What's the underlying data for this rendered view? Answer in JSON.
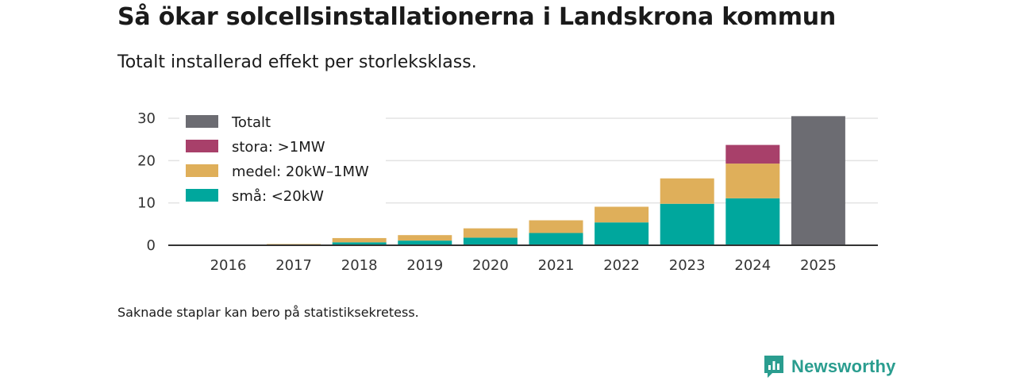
{
  "title": "Så ökar solcellsinstallationerna i Landskrona kommun",
  "subtitle": "Totalt installerad effekt per storleksklass.",
  "note": "Saknade staplar kan bero på statistiksekretess.",
  "brand": "Newsworthy",
  "colors": {
    "small": "#00a79d",
    "medium": "#dfaf5a",
    "large": "#a8406a",
    "total": "#6c6c72",
    "brand": "#2a9d8f",
    "grid": "#e3e3e3",
    "axis": "#333333"
  },
  "chart_data": {
    "type": "bar",
    "stacked": true,
    "title": "Så ökar solcellsinstallationerna i Landskrona kommun",
    "subtitle": "Totalt installerad effekt per storleksklass.",
    "xlabel": "",
    "ylabel": "",
    "ylim": [
      0,
      30
    ],
    "yticks": [
      0,
      10,
      20,
      30
    ],
    "grid": true,
    "legend_position": "top-left",
    "categories": [
      "2016",
      "2017",
      "2018",
      "2019",
      "2020",
      "2021",
      "2022",
      "2023",
      "2024",
      "2025"
    ],
    "series": [
      {
        "name": "små: <20kW",
        "color_key": "small",
        "values": [
          0.05,
          0.15,
          0.7,
          1.1,
          1.8,
          2.9,
          5.4,
          9.8,
          11.1,
          null
        ]
      },
      {
        "name": "medel: 20kW–1MW",
        "color_key": "medium",
        "values": [
          0.1,
          0.15,
          1.0,
          1.3,
          2.2,
          3.0,
          3.7,
          6.0,
          8.2,
          null
        ]
      },
      {
        "name": "stora: >1MW",
        "color_key": "large",
        "values": [
          null,
          null,
          null,
          null,
          null,
          null,
          null,
          null,
          4.4,
          null
        ]
      },
      {
        "name": "Totalt",
        "color_key": "total",
        "values": [
          null,
          null,
          null,
          null,
          null,
          null,
          null,
          null,
          null,
          30.5
        ]
      }
    ],
    "legend": [
      "Totalt",
      "stora: >1MW",
      "medel: 20kW–1MW",
      "små: <20kW"
    ]
  }
}
